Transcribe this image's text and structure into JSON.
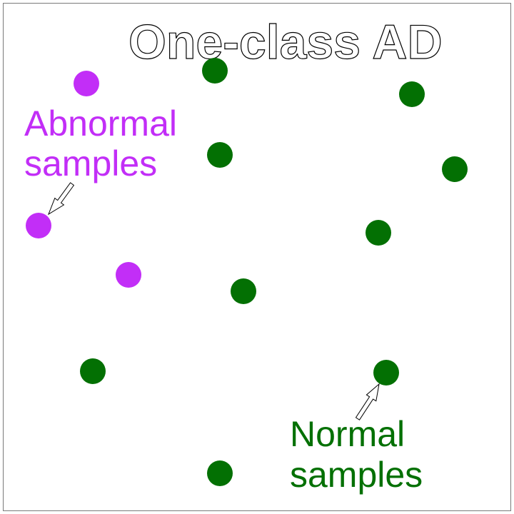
{
  "title": "One-class AD",
  "abnormal": {
    "label_line1": "Abnormal",
    "label_line2": "samples",
    "color": "#c22ef7"
  },
  "normal": {
    "label_line1": "Normal",
    "label_line2": "samples",
    "color": "#037003"
  },
  "colors": {
    "frame": "#7a7a7a",
    "background": "#ffffff",
    "title_stroke": "#000000",
    "arrow_stroke": "#000000"
  }
}
